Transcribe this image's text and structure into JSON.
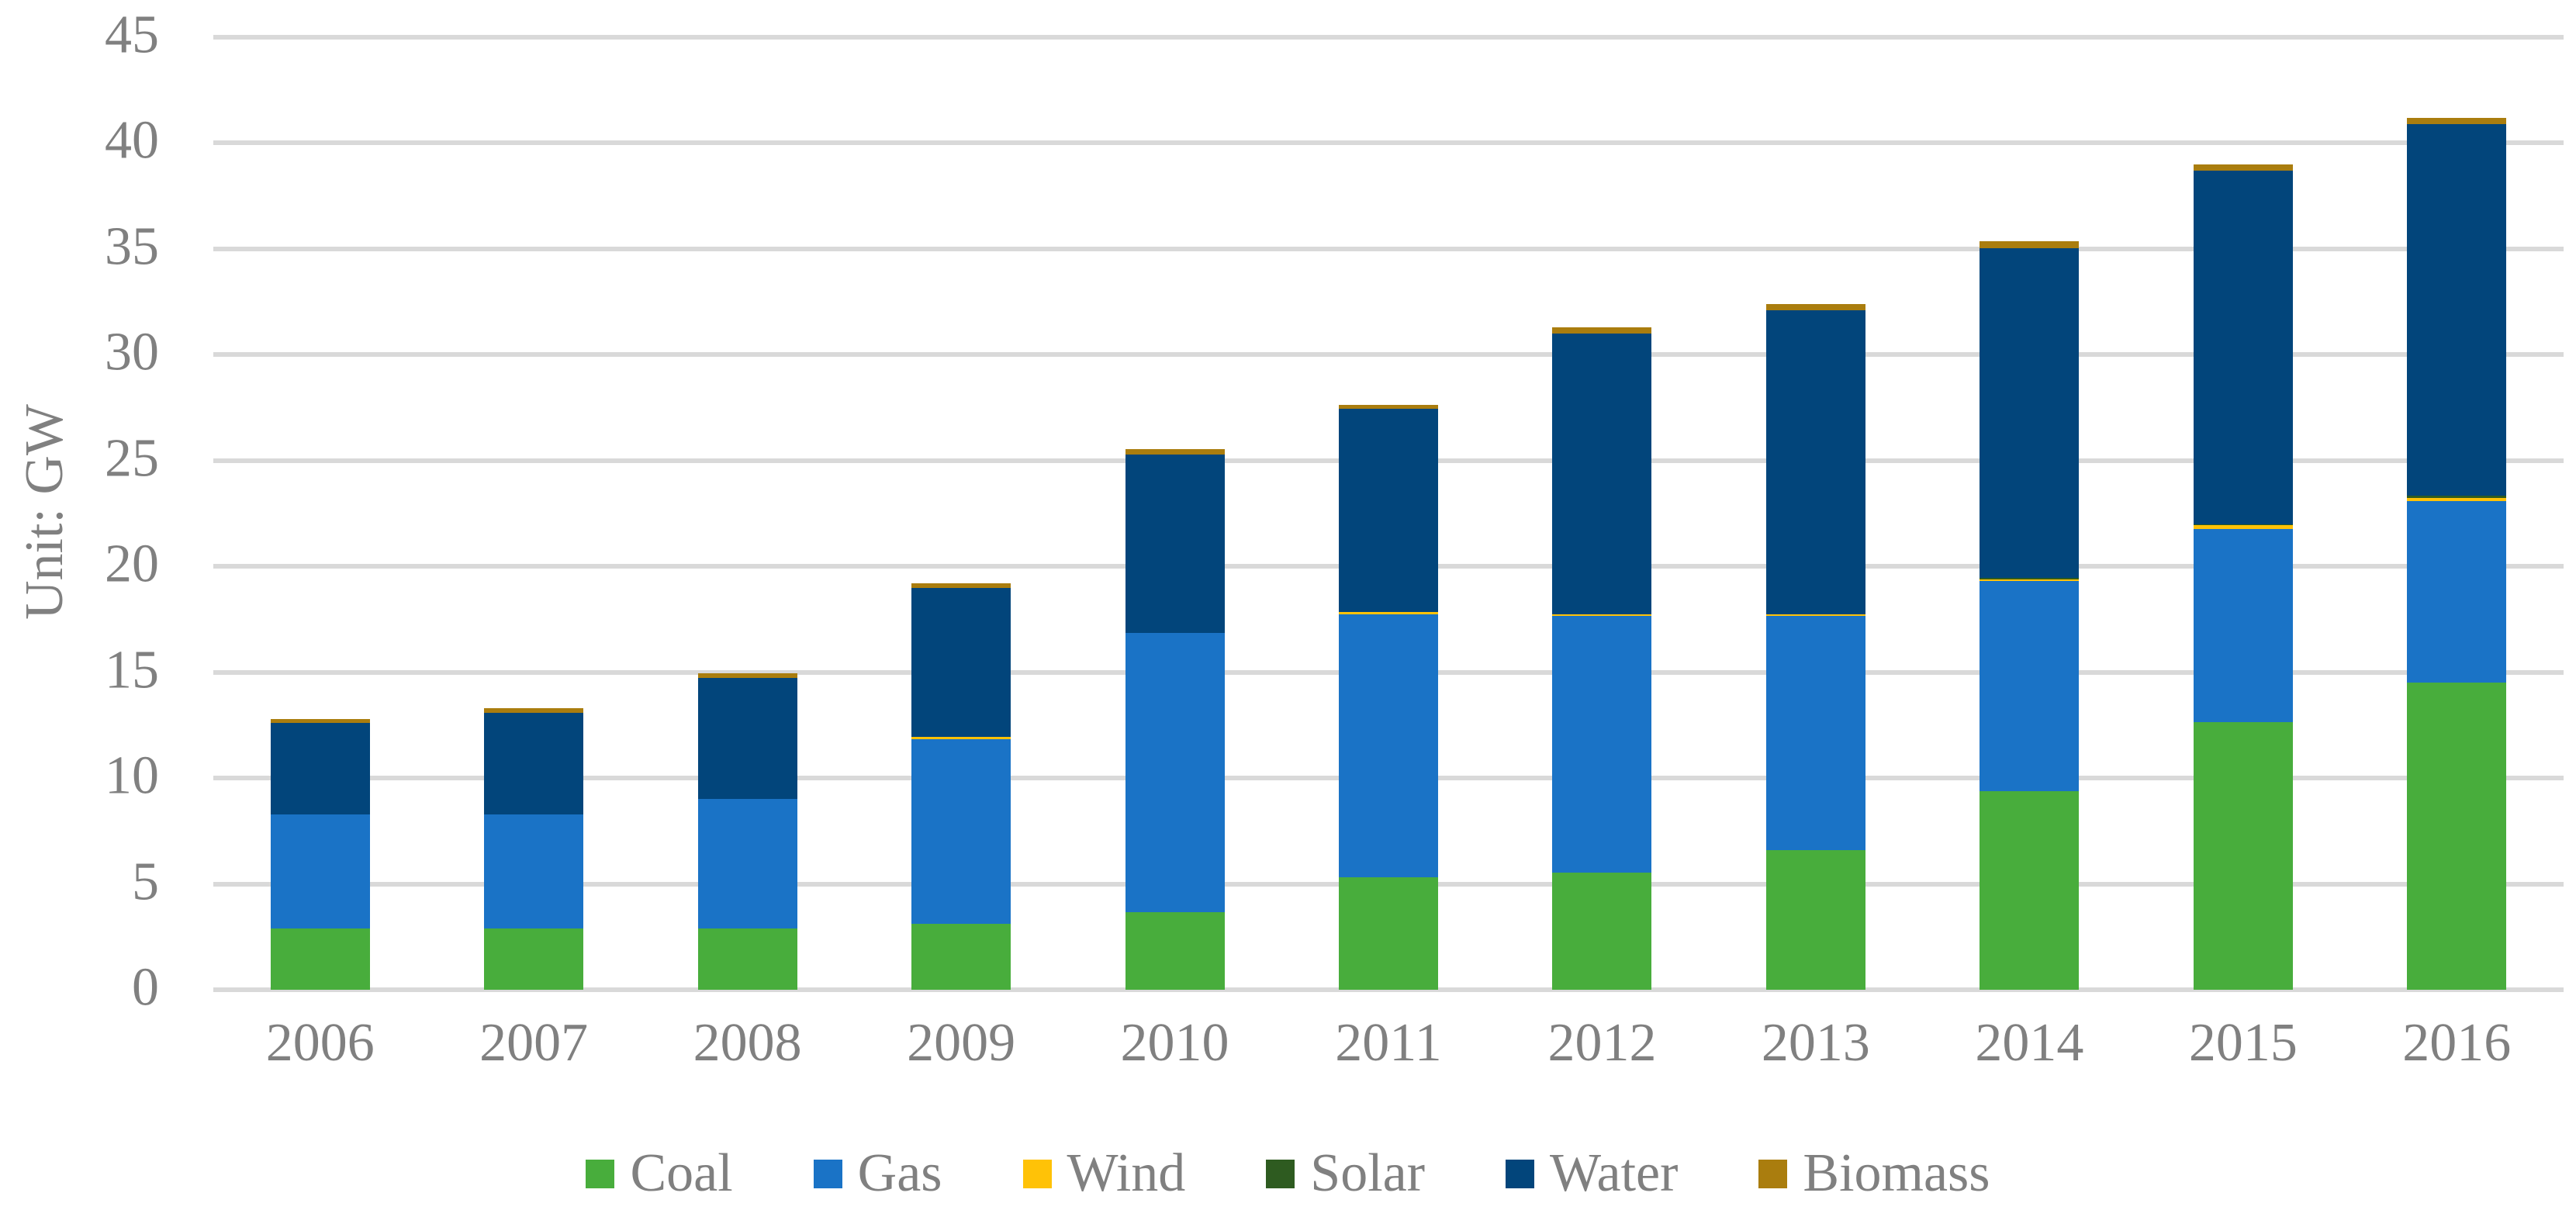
{
  "chart_data": {
    "type": "bar",
    "stacked": true,
    "title": "",
    "xlabel": "",
    "ylabel": "Unit: GW",
    "ylim": [
      0,
      45
    ],
    "yticks": [
      0,
      5,
      10,
      15,
      20,
      25,
      30,
      35,
      40,
      45
    ],
    "grid": true,
    "legend_position": "bottom",
    "categories": [
      "2006",
      "2007",
      "2008",
      "2009",
      "2010",
      "2011",
      "2012",
      "2013",
      "2014",
      "2015",
      "2016"
    ],
    "series": [
      {
        "name": "Coal",
        "color": "#48AD3C",
        "values": [
          2.9,
          2.9,
          2.9,
          3.1,
          3.65,
          5.3,
          5.55,
          6.6,
          9.4,
          12.65,
          14.5
        ]
      },
      {
        "name": "Gas",
        "color": "#1A73C6",
        "values": [
          5.4,
          5.4,
          6.1,
          8.75,
          13.2,
          12.45,
          12.1,
          11.05,
          9.9,
          9.1,
          8.6
        ]
      },
      {
        "name": "Wind",
        "color": "#FFC207",
        "values": [
          0,
          0,
          0,
          0.1,
          0,
          0.1,
          0.1,
          0.1,
          0.1,
          0.2,
          0.15
        ]
      },
      {
        "name": "Solar",
        "color": "#2E5B20",
        "values": [
          0,
          0,
          0,
          0,
          0,
          0,
          0,
          0,
          0.05,
          0.05,
          0.1
        ]
      },
      {
        "name": "Water",
        "color": "#02457B",
        "values": [
          4.3,
          4.8,
          5.75,
          7.05,
          8.45,
          9.6,
          13.25,
          14.35,
          15.6,
          16.7,
          17.55
        ]
      },
      {
        "name": "Biomass",
        "color": "#AA7D0E",
        "values": [
          0.2,
          0.2,
          0.2,
          0.2,
          0.25,
          0.2,
          0.3,
          0.3,
          0.3,
          0.3,
          0.3
        ]
      }
    ],
    "totals": [
      12.8,
      13.3,
      14.95,
      19.2,
      25.55,
      27.65,
      31.3,
      32.4,
      35.35,
      39.0,
      41.2
    ]
  },
  "style": {
    "gridline_color": "#D9D9D9",
    "text_color": "#808080",
    "background_color": "#FFFFFF"
  }
}
